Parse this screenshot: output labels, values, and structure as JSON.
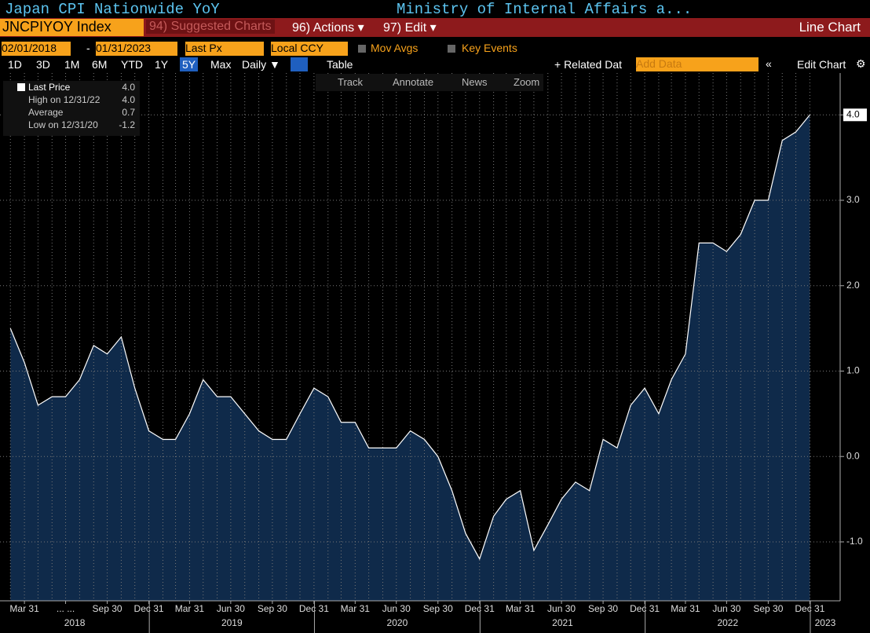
{
  "header": {
    "title": "Japan CPI Nationwide YoY",
    "source": "Ministry of Internal Affairs a..."
  },
  "menu": {
    "ticker": "JNCPIYOY Index",
    "suggested": "94) Suggested Charts",
    "actions": "96) Actions ▾",
    "edit": "97) Edit ▾",
    "view": "Line Chart"
  },
  "range_bar": {
    "start": "02/01/2018",
    "dash": "-",
    "end": "01/31/2023",
    "field": "Last Px",
    "currency": "Local CCY",
    "mov_avgs": "Mov Avgs",
    "key_events": "Key Events"
  },
  "period_bar": {
    "periods": [
      "1D",
      "3D",
      "1M",
      "6M",
      "YTD",
      "1Y",
      "5Y",
      "Max"
    ],
    "selected": "5Y",
    "frequency": "Daily ▼",
    "table": "Table",
    "related": "+ Related Dat",
    "add_data": "Add Data",
    "collapse": "«",
    "edit_chart": "Edit Chart",
    "settings": "⚙"
  },
  "tools": [
    "Track",
    "Annotate",
    "News",
    "Zoom"
  ],
  "legend": {
    "rows": [
      [
        "Last Price",
        "4.0"
      ],
      [
        "High on 12/31/22",
        "4.0"
      ],
      [
        "Average",
        "0.7"
      ],
      [
        "Low on 12/31/20",
        "-1.2"
      ]
    ]
  },
  "chart_data": {
    "type": "area",
    "color": "#0f2a4a",
    "line_color": "#ffffff",
    "x": [
      "2018-02-28",
      "2018-03-31",
      "2018-04-30",
      "2018-05-31",
      "2018-06-30",
      "2018-07-31",
      "2018-08-31",
      "2018-09-30",
      "2018-10-31",
      "2018-11-30",
      "2018-12-31",
      "2019-01-31",
      "2019-02-28",
      "2019-03-31",
      "2019-04-30",
      "2019-05-31",
      "2019-06-30",
      "2019-07-31",
      "2019-08-31",
      "2019-09-30",
      "2019-10-31",
      "2019-11-30",
      "2019-12-31",
      "2020-01-31",
      "2020-02-29",
      "2020-03-31",
      "2020-04-30",
      "2020-05-31",
      "2020-06-30",
      "2020-07-31",
      "2020-08-31",
      "2020-09-30",
      "2020-10-31",
      "2020-11-30",
      "2020-12-31",
      "2021-01-31",
      "2021-02-28",
      "2021-03-31",
      "2021-04-30",
      "2021-05-31",
      "2021-06-30",
      "2021-07-31",
      "2021-08-31",
      "2021-09-30",
      "2021-10-31",
      "2021-11-30",
      "2021-12-31",
      "2022-01-31",
      "2022-02-28",
      "2022-03-31",
      "2022-04-30",
      "2022-05-31",
      "2022-06-30",
      "2022-07-31",
      "2022-08-31",
      "2022-09-30",
      "2022-10-31",
      "2022-11-30",
      "2022-12-31"
    ],
    "series": [
      {
        "name": "Last Price",
        "values": [
          1.5,
          1.1,
          0.6,
          0.7,
          0.7,
          0.9,
          1.3,
          1.2,
          1.4,
          0.8,
          0.3,
          0.2,
          0.2,
          0.5,
          0.9,
          0.7,
          0.7,
          0.5,
          0.3,
          0.2,
          0.2,
          0.5,
          0.8,
          0.7,
          0.4,
          0.4,
          0.1,
          0.1,
          0.1,
          0.3,
          0.2,
          0.0,
          -0.4,
          -0.9,
          -1.2,
          -0.7,
          -0.5,
          -0.4,
          -1.1,
          -0.8,
          -0.5,
          -0.3,
          -0.4,
          0.2,
          0.1,
          0.6,
          0.8,
          0.5,
          0.9,
          1.2,
          2.5,
          2.5,
          2.4,
          2.6,
          3.0,
          3.0,
          3.7,
          3.8,
          4.0
        ]
      }
    ],
    "last_label": "4.0",
    "xlim": [
      "2018-02-05",
      "2023-03-08"
    ],
    "xticks": [
      {
        "value": "2018-03-31",
        "label": "Mar 31"
      },
      {
        "value": "2018-06-30",
        "label": "... ..."
      },
      {
        "value": "2018-09-30",
        "label": "Sep 30"
      },
      {
        "value": "2018-12-31",
        "label": "Dec 31"
      },
      {
        "value": "2019-03-31",
        "label": "Mar 31"
      },
      {
        "value": "2019-06-30",
        "label": "Jun 30"
      },
      {
        "value": "2019-09-30",
        "label": "Sep 30"
      },
      {
        "value": "2019-12-31",
        "label": "Dec 31"
      },
      {
        "value": "2020-03-31",
        "label": "Mar 31"
      },
      {
        "value": "2020-06-30",
        "label": "Jun 30"
      },
      {
        "value": "2020-09-30",
        "label": "Sep 30"
      },
      {
        "value": "2020-12-31",
        "label": "Dec 31"
      },
      {
        "value": "2021-03-31",
        "label": "Mar 31"
      },
      {
        "value": "2021-06-30",
        "label": "Jun 30"
      },
      {
        "value": "2021-09-30",
        "label": "Sep 30"
      },
      {
        "value": "2021-12-31",
        "label": "Dec 31"
      },
      {
        "value": "2022-03-31",
        "label": "Mar 31"
      },
      {
        "value": "2022-06-30",
        "label": "Jun 30"
      },
      {
        "value": "2022-09-30",
        "label": "Sep 30"
      },
      {
        "value": "2022-12-31",
        "label": "Dec 31"
      }
    ],
    "years": [
      "2018",
      "2019",
      "2020",
      "2021",
      "2022",
      "2023"
    ],
    "ylim": [
      -1.69,
      4.49
    ],
    "yticks": [
      {
        "value": -1,
        "label": "-1.0"
      },
      {
        "value": 0,
        "label": "0.0"
      },
      {
        "value": 1,
        "label": "1.0"
      },
      {
        "value": 2,
        "label": "2.0"
      },
      {
        "value": 3,
        "label": "3.0"
      },
      {
        "value": 4,
        "label": "4.0"
      }
    ],
    "grid": true
  }
}
